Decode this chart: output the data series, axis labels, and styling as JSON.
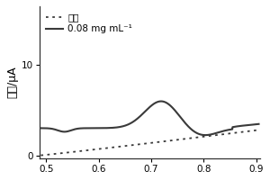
{
  "xlim": [
    0.488,
    0.908
  ],
  "ylim": [
    -0.3,
    16.5
  ],
  "ylabel": "电流/μA",
  "xticks": [
    0.5,
    0.6,
    0.7,
    0.8,
    0.9
  ],
  "yticks": [
    0,
    10
  ],
  "legend_labels": [
    "空白",
    "0.08 mg mL⁻¹"
  ],
  "bg_color": "#ffffff",
  "line_color": "#3a3a3a",
  "dot_color": "#3a3a3a"
}
